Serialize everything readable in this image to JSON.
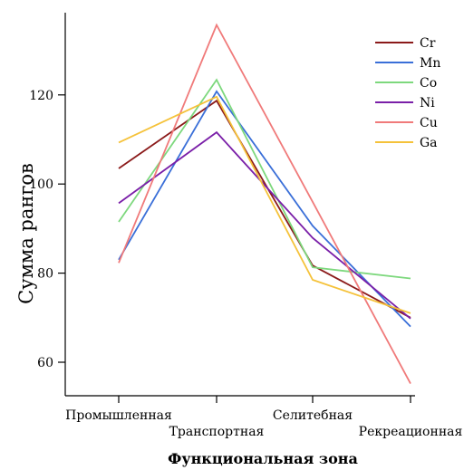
{
  "chart_data": {
    "type": "line",
    "xlabel": "Функциональная зона",
    "ylabel": "Сумма рангов",
    "categories": [
      "Промышленная",
      "Транспортная",
      "Селитебная",
      "Рекреационная"
    ],
    "yticks": [
      60,
      80,
      100,
      120
    ],
    "ylim": [
      53,
      141
    ],
    "grid": false,
    "legend_position": "top-right",
    "series": [
      {
        "name": "Cr",
        "color": "#8B1A1A",
        "values": [
          103.5,
          118.7,
          81.7,
          70.0
        ]
      },
      {
        "name": "Mn",
        "color": "#3A6FD8",
        "values": [
          83.0,
          120.8,
          90.6,
          68.0
        ]
      },
      {
        "name": "Co",
        "color": "#7DD87D",
        "values": [
          91.5,
          123.4,
          81.3,
          78.8
        ]
      },
      {
        "name": "Ni",
        "color": "#7A1FA8",
        "values": [
          95.7,
          111.6,
          87.9,
          69.8
        ]
      },
      {
        "name": "Cu",
        "color": "#F07A7A",
        "values": [
          82.3,
          135.7,
          96.0,
          55.2
        ]
      },
      {
        "name": "Ga",
        "color": "#F5C23A",
        "values": [
          109.3,
          119.6,
          78.5,
          71.0
        ]
      }
    ]
  }
}
